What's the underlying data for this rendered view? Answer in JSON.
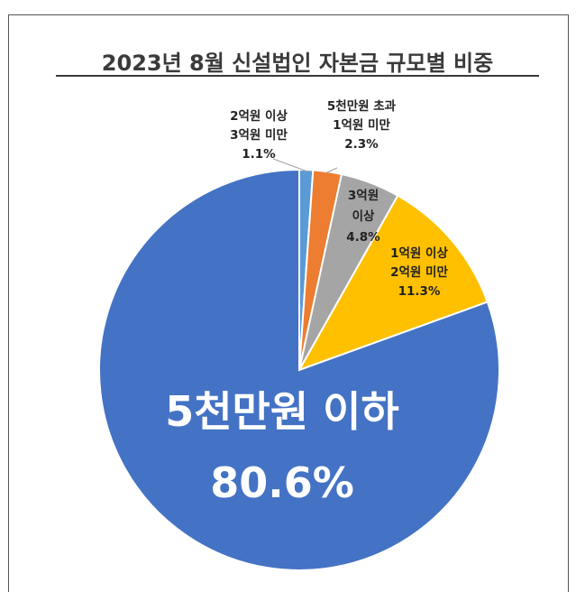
{
  "chart_data": {
    "type": "pie",
    "title": "2023년 8월 신설법인 자본금 규모별 비중",
    "slices": [
      {
        "label_lines": [
          "2억원 이상",
          "3억원 미만",
          "1.1%"
        ],
        "value": 1.1,
        "color": "#5b9bd5"
      },
      {
        "label_lines": [
          "5천만원 초과",
          "1억원 미만",
          "2.3%"
        ],
        "value": 2.3,
        "color": "#ed7d31"
      },
      {
        "label_lines": [
          "3억원",
          "이상",
          "4.8%"
        ],
        "value": 4.8,
        "color": "#a5a5a5"
      },
      {
        "label_lines": [
          "1억원 이상",
          "2억원 미만",
          "11.3%"
        ],
        "value": 11.3,
        "color": "#ffc000"
      },
      {
        "label_lines": [
          "5천만원 이하",
          "80.6%"
        ],
        "value": 80.6,
        "color": "#4472c4"
      }
    ]
  }
}
